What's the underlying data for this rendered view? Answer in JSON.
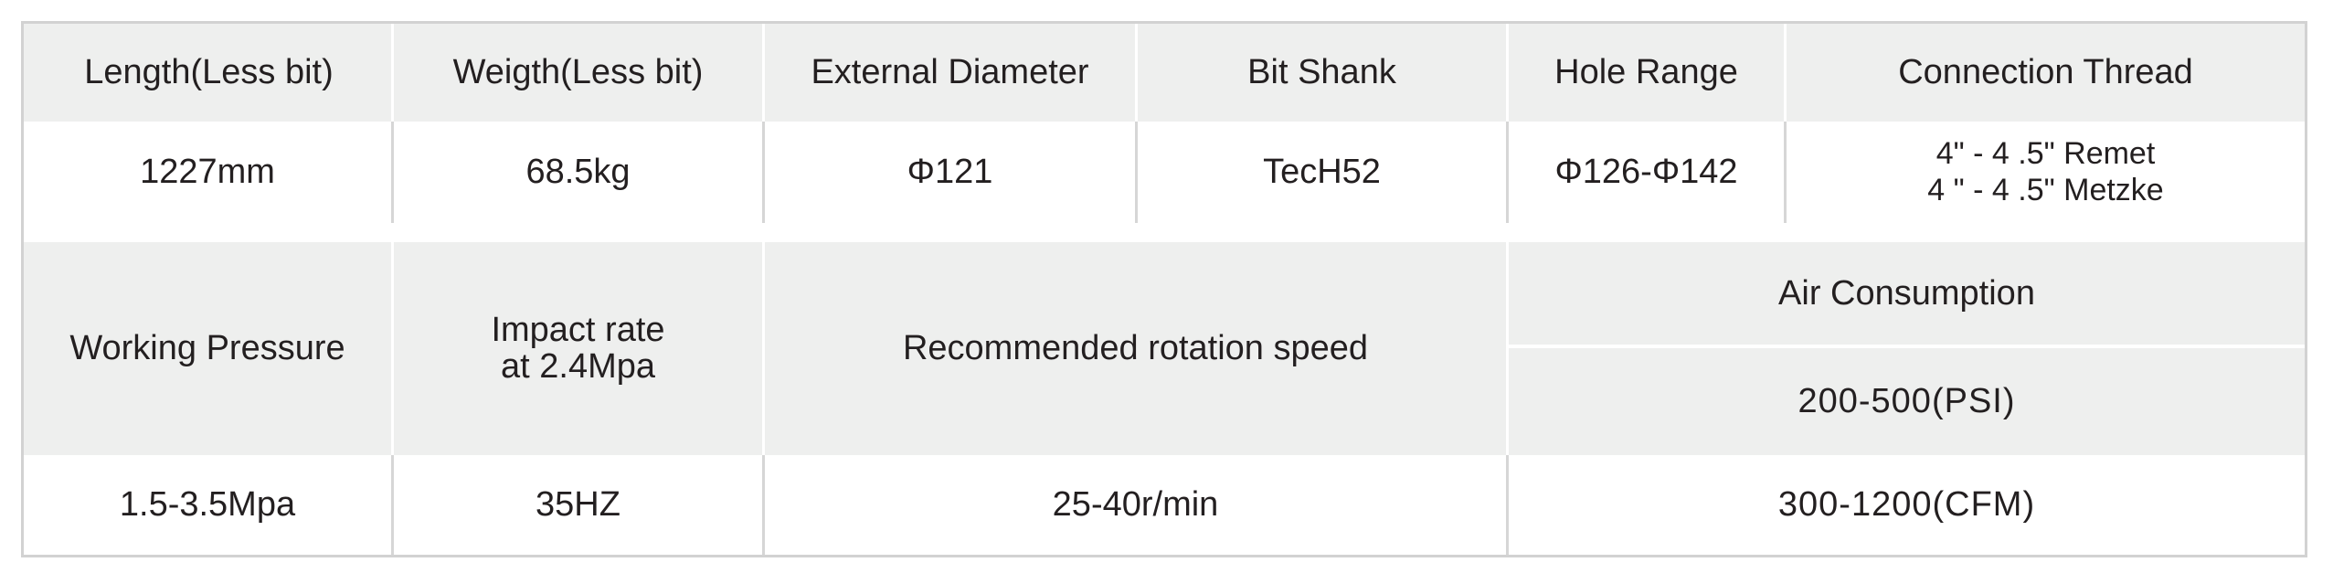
{
  "row1_headers": [
    "Length(Less bit)",
    "Weigth(Less bit)",
    "External Diameter",
    "Bit Shank",
    "Hole Range",
    "Connection Thread"
  ],
  "row1_values": [
    "1227mm",
    "68.5kg",
    "Φ121",
    "TecH52",
    "Φ126-Φ142",
    [
      "4\" - 4 .5\" Remet",
      "4 \" - 4 .5\" Metzke"
    ]
  ],
  "row2_headers": {
    "working_pressure": "Working Pressure",
    "impact_rate": [
      "Impact rate",
      "at 2.4Mpa"
    ],
    "rotation_speed": "Recommended rotation speed",
    "air_consumption": "Air Consumption",
    "air_psi": "200-500(PSI)"
  },
  "row2_values": {
    "working_pressure": "1.5-3.5Mpa",
    "impact_rate": "35HZ",
    "rotation_speed": "25-40r/min",
    "air_cfm": "300-1200(CFM)"
  },
  "colors": {
    "header_bg": "#eeefee",
    "border": "#d2d2d2",
    "text": "#231f20"
  }
}
